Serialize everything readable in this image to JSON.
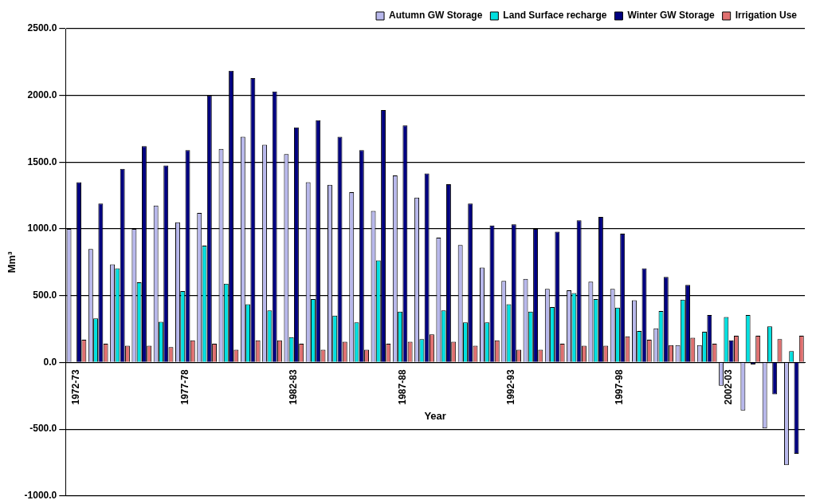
{
  "chart_data": {
    "type": "bar",
    "xlabel": "Year",
    "ylabel": "Mm³",
    "categories": [
      "1972-73",
      null,
      null,
      null,
      null,
      "1977-78",
      null,
      null,
      null,
      null,
      "1982-83",
      null,
      null,
      null,
      null,
      "1987-88",
      null,
      null,
      null,
      null,
      "1992-93",
      null,
      null,
      null,
      null,
      "1997-98",
      null,
      null,
      null,
      null,
      "2002-03",
      null,
      null,
      null
    ],
    "series": [
      {
        "name": "Autumn GW Storage",
        "color": "#b8b8ec",
        "values": [
          1000,
          850,
          735,
          1000,
          1175,
          1050,
          1120,
          1600,
          1690,
          1630,
          1560,
          1350,
          1330,
          1275,
          1135,
          1400,
          1235,
          935,
          880,
          710,
          610,
          625,
          550,
          540,
          605,
          550,
          465,
          255,
          130,
          130,
          -175,
          -360,
          -495,
          -770
        ]
      },
      {
        "name": "Land Surface recharge",
        "color": "#00e0e0",
        "values": [
          null,
          330,
          705,
          600,
          305,
          535,
          875,
          590,
          435,
          390,
          190,
          475,
          350,
          300,
          765,
          380,
          175,
          390,
          300,
          300,
          435,
          380,
          415,
          520,
          475,
          410,
          235,
          385,
          470,
          230,
          340,
          355,
          270,
          85
        ]
      },
      {
        "name": "Winter GW Storage",
        "color": "#000080",
        "values": [
          1350,
          1190,
          1450,
          1620,
          1475,
          1590,
          2000,
          2185,
          2130,
          2030,
          1760,
          1815,
          1690,
          1590,
          1890,
          1775,
          1415,
          1335,
          1190,
          1025,
          1035,
          1000,
          980,
          1065,
          1090,
          965,
          705,
          640,
          580,
          355,
          165,
          -15,
          -240,
          -685
        ]
      },
      {
        "name": "Irrigation Use",
        "color": "#e07070",
        "values": [
          170,
          140,
          125,
          125,
          115,
          165,
          140,
          95,
          165,
          165,
          140,
          95,
          155,
          95,
          140,
          155,
          210,
          155,
          125,
          165,
          95,
          95,
          140,
          125,
          125,
          195,
          170,
          130,
          185,
          140,
          200,
          200,
          175,
          200
        ]
      }
    ],
    "ylim": [
      -1000,
      2500
    ],
    "yticks": [
      {
        "value": -1000,
        "label": "-1000.0"
      },
      {
        "value": -500,
        "label": "-500.0"
      },
      {
        "value": 0,
        "label": "0.0"
      },
      {
        "value": 500,
        "label": "500.0"
      },
      {
        "value": 1000,
        "label": "1000.0"
      },
      {
        "value": 1500,
        "label": "1500.0"
      },
      {
        "value": 2000,
        "label": "2000.0"
      },
      {
        "value": 2500,
        "label": "2500.0"
      }
    ],
    "grid": "y",
    "legend": "top right"
  }
}
